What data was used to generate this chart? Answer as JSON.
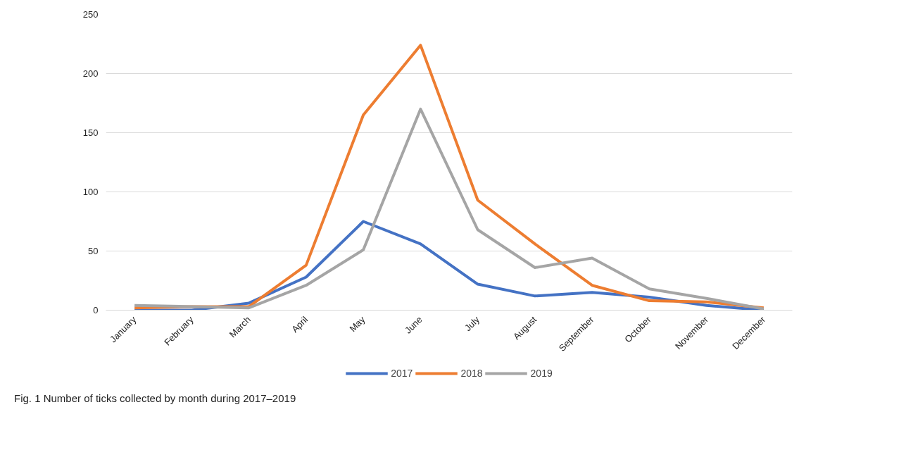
{
  "chart_data": {
    "type": "line",
    "categories": [
      "January",
      "February",
      "March",
      "April",
      "May",
      "June",
      "July",
      "August",
      "September",
      "October",
      "November",
      "December"
    ],
    "series": [
      {
        "name": "2017",
        "color": "#4472c4",
        "values": [
          0,
          0,
          6,
          28,
          75,
          56,
          22,
          12,
          15,
          11,
          4,
          0
        ]
      },
      {
        "name": "2018",
        "color": "#ed7d31",
        "values": [
          2,
          3,
          3,
          38,
          165,
          224,
          93,
          56,
          21,
          8,
          7,
          2
        ]
      },
      {
        "name": "2019",
        "color": "#a5a5a5",
        "values": [
          4,
          3,
          2,
          21,
          51,
          170,
          68,
          36,
          44,
          18,
          10,
          1
        ]
      }
    ],
    "ylim": [
      0,
      250
    ],
    "yticks": [
      0,
      50,
      100,
      150,
      200,
      250
    ],
    "grid": "y",
    "legend": "bottom",
    "marker": "none",
    "line_style": "solid",
    "annotations": [
      "Fig. 1  Number of ticks collected by month during 2017–2019"
    ]
  }
}
